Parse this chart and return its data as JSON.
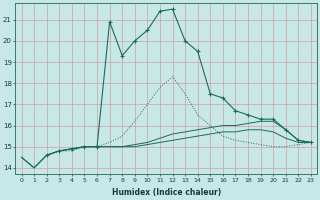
{
  "xlabel": "Humidex (Indice chaleur)",
  "bg_color": "#c8e8e8",
  "grid_color": "#d0a0a0",
  "line_color": "#1a6b5a",
  "xlim": [
    -0.5,
    23.5
  ],
  "ylim": [
    13.7,
    21.8
  ],
  "yticks": [
    14,
    15,
    16,
    17,
    18,
    19,
    20,
    21
  ],
  "xticks": [
    0,
    1,
    2,
    3,
    4,
    5,
    6,
    7,
    8,
    9,
    10,
    11,
    12,
    13,
    14,
    15,
    16,
    17,
    18,
    19,
    20,
    21,
    22,
    23
  ],
  "line_dotted_x": [
    0,
    1,
    2,
    3,
    4,
    5,
    6,
    7,
    8,
    9,
    10,
    11,
    12,
    13,
    14,
    15,
    16,
    17,
    18,
    19,
    20,
    21,
    22,
    23
  ],
  "line_dotted_y": [
    14.5,
    14.0,
    14.6,
    14.8,
    14.8,
    15.0,
    15.0,
    15.2,
    15.5,
    16.2,
    17.0,
    17.8,
    18.3,
    17.5,
    16.5,
    16.0,
    15.5,
    15.3,
    15.2,
    15.1,
    15.0,
    15.0,
    15.1,
    15.2
  ],
  "line_flat1_x": [
    0,
    1,
    2,
    3,
    4,
    5,
    6,
    7,
    8,
    9,
    10,
    11,
    12,
    13,
    14,
    15,
    16,
    17,
    18,
    19,
    20,
    21,
    22,
    23
  ],
  "line_flat1_y": [
    14.5,
    14.0,
    14.6,
    14.8,
    14.9,
    15.0,
    15.0,
    15.0,
    15.0,
    15.0,
    15.1,
    15.2,
    15.3,
    15.4,
    15.5,
    15.6,
    15.7,
    15.7,
    15.8,
    15.8,
    15.7,
    15.4,
    15.2,
    15.2
  ],
  "line_flat2_x": [
    0,
    1,
    2,
    3,
    4,
    5,
    6,
    7,
    8,
    9,
    10,
    11,
    12,
    13,
    14,
    15,
    16,
    17,
    18,
    19,
    20,
    21,
    22,
    23
  ],
  "line_flat2_y": [
    14.5,
    14.0,
    14.6,
    14.8,
    14.9,
    15.0,
    15.0,
    15.0,
    15.0,
    15.1,
    15.2,
    15.4,
    15.6,
    15.7,
    15.8,
    15.9,
    16.0,
    16.0,
    16.1,
    16.2,
    16.2,
    15.8,
    15.3,
    15.2
  ],
  "line_peak_x": [
    2,
    3,
    4,
    5,
    6,
    7,
    8,
    9,
    10,
    11,
    12,
    13,
    14,
    15,
    16,
    17,
    18,
    19,
    20,
    21,
    22,
    23
  ],
  "line_peak_y": [
    14.6,
    14.8,
    14.9,
    15.0,
    15.0,
    20.9,
    19.3,
    20.0,
    20.5,
    21.4,
    21.5,
    20.0,
    19.5,
    17.5,
    17.3,
    16.7,
    16.5,
    16.3,
    16.3,
    15.8,
    15.3,
    15.2
  ]
}
